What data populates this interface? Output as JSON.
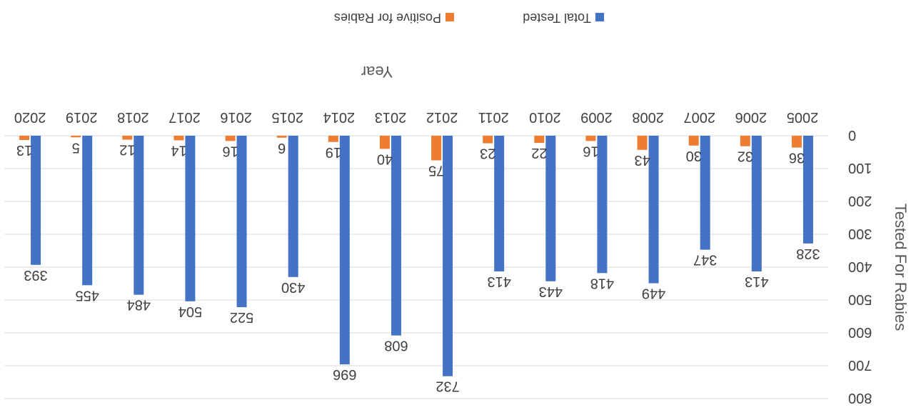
{
  "chart_data": {
    "type": "bar",
    "orientation": "vertical",
    "rotated_180": true,
    "categories": [
      "2005",
      "2006",
      "2007",
      "2008",
      "2009",
      "2010",
      "2011",
      "2012",
      "2013",
      "2014",
      "2015",
      "2016",
      "2017",
      "2018",
      "2019",
      "2020"
    ],
    "series": [
      {
        "name": "Total Tested",
        "color": "#4472C4",
        "values": [
          328,
          413,
          347,
          449,
          418,
          443,
          413,
          732,
          608,
          696,
          430,
          522,
          504,
          484,
          455,
          393
        ]
      },
      {
        "name": "Positive for Rabies",
        "color": "#ED7D31",
        "values": [
          36,
          32,
          30,
          43,
          16,
          22,
          23,
          75,
          40,
          19,
          6,
          16,
          14,
          12,
          5,
          13
        ]
      }
    ],
    "xlabel": "Year",
    "ylabel": "Tested For Rabies",
    "ylim": [
      0,
      800
    ],
    "yticks": [
      0,
      100,
      200,
      300,
      400,
      500,
      600,
      700,
      800
    ],
    "grid": true,
    "legend_position": "bottom"
  }
}
